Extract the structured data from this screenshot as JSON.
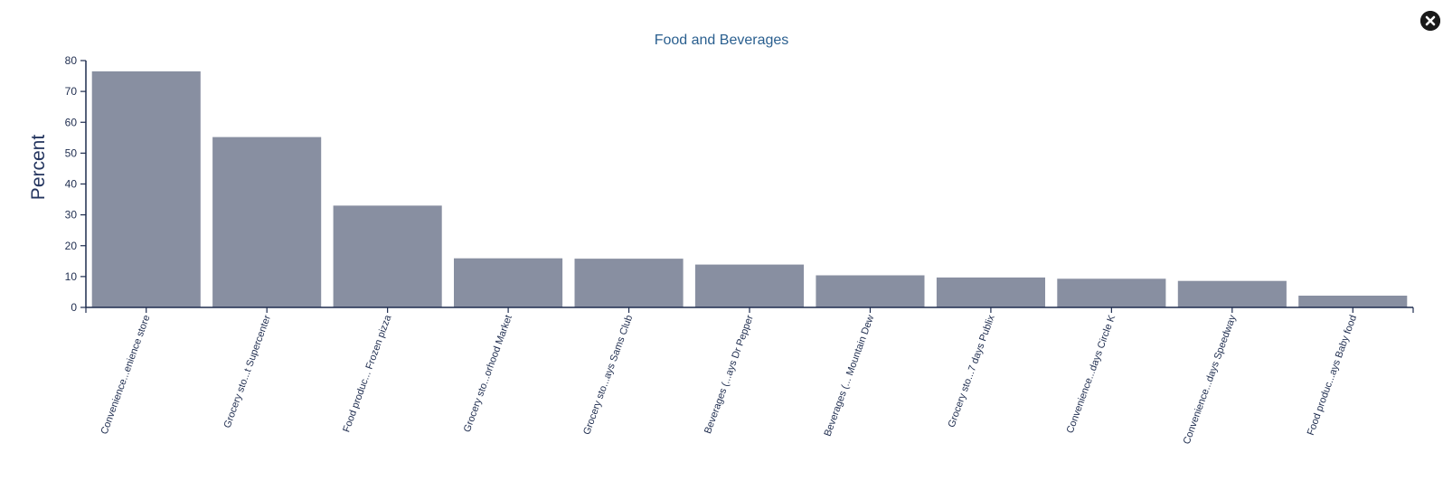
{
  "chart_data": {
    "type": "bar",
    "title": "Food and Beverages",
    "ylabel": "Percent",
    "xlabel": "",
    "ylim": [
      0,
      80
    ],
    "yticks": [
      0,
      10,
      20,
      30,
      40,
      50,
      60,
      70,
      80
    ],
    "grid": false,
    "categories": [
      "Convenience...enience store",
      "Grocery sto...t Supercenter",
      "Food produc... Frozen pizza",
      "Grocery sto...orhood Market",
      "Grocery sto...ays Sams Club",
      "Beverages (...ays Dr Pepper",
      "Beverages (... Mountain Dew",
      "Grocery sto...7 days Publix",
      "Convenience...days Circle K",
      "Convenience...days Speedway",
      "Food produc...ays Baby food"
    ],
    "values": [
      76.5,
      55.2,
      33.0,
      15.9,
      15.8,
      13.9,
      10.4,
      9.7,
      9.3,
      8.6,
      3.8
    ],
    "bar_color": "#888fa1"
  },
  "icons": {
    "close": "close-icon"
  }
}
